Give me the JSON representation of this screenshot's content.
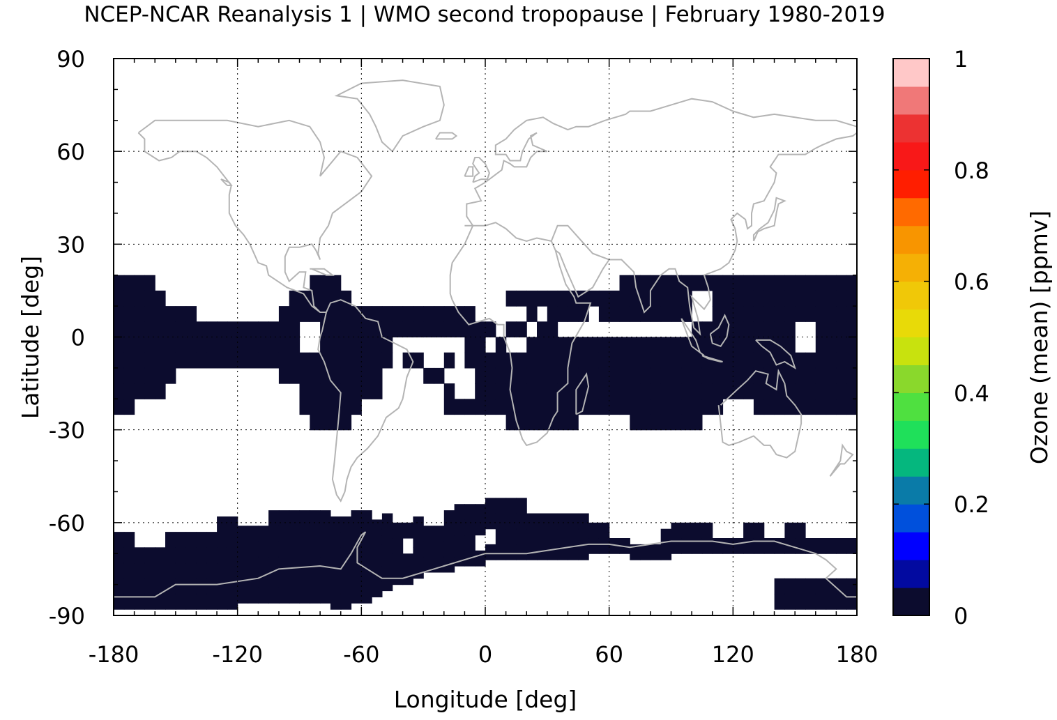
{
  "chart_data": {
    "type": "heatmap",
    "title": "NCEP-NCAR Reanalysis 1 | WMO second tropopause | February 1980-2019",
    "xlabel": "Longitude [deg]",
    "ylabel": "Latitude [deg]",
    "colorbar_label": "Ozone (mean) [ppmv]",
    "xlim": [
      -180,
      180
    ],
    "ylim": [
      -90,
      90
    ],
    "xticks": [
      -180,
      -120,
      -60,
      0,
      60,
      120,
      180
    ],
    "yticks": [
      90,
      60,
      30,
      0,
      -30,
      -60,
      -90
    ],
    "xtick_labels": [
      "-180",
      "-120",
      "-60",
      "0",
      "60",
      "120",
      "180"
    ],
    "ytick_labels": [
      "90",
      "60",
      "30",
      "0",
      "-30",
      "-60",
      "-90"
    ],
    "grid": true,
    "colorbar": {
      "range": [
        0,
        1
      ],
      "tick_labels": [
        "1",
        "0.8",
        "0.6",
        "0.4",
        "0.2",
        "0"
      ],
      "tick_values": [
        1,
        0.8,
        0.6,
        0.4,
        0.2,
        0
      ],
      "colors": [
        "#0c0c2e",
        "#020aa0",
        "#0000ff",
        "#0050dc",
        "#0a7ba8",
        "#05b77e",
        "#1fe05a",
        "#4fe040",
        "#8ad82c",
        "#c8e20e",
        "#e8da08",
        "#f0c808",
        "#f5b005",
        "#f89500",
        "#ff6a00",
        "#ff1e00",
        "#f81818",
        "#ec3232",
        "#f07878",
        "#ffc8c8"
      ]
    },
    "data_color": "#0c0c2e",
    "coastline_color": "#b4b4b4",
    "regions": [
      {
        "name": "tropical band",
        "lon": [
          -180,
          180
        ],
        "lat": [
          -28,
          20
        ],
        "value": 0.02
      },
      {
        "name": "southern polar band",
        "lon": [
          -180,
          180
        ],
        "lat": [
          -88,
          -55
        ],
        "value": 0.02
      }
    ]
  }
}
